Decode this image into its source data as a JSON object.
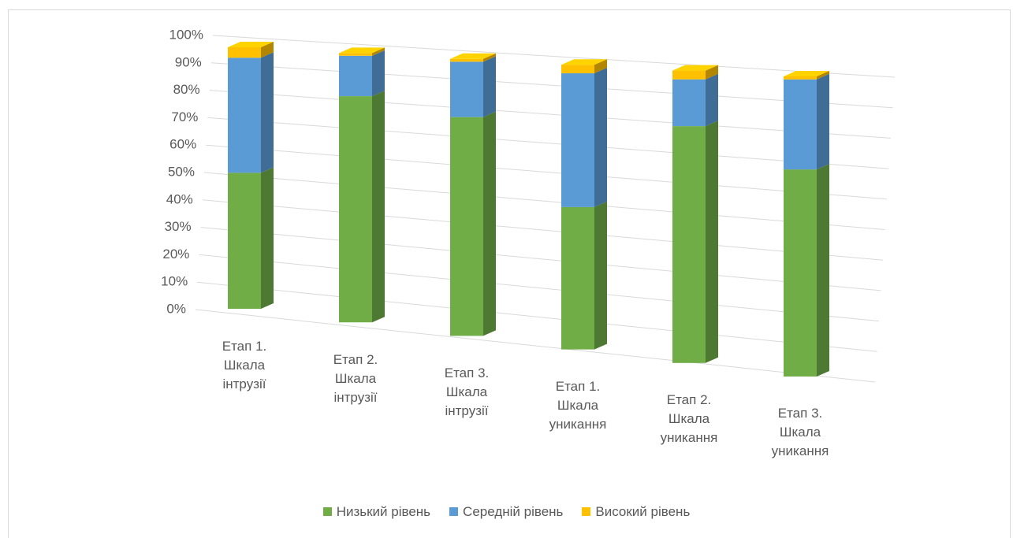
{
  "chart_data": {
    "type": "bar3d_stacked",
    "categories": [
      "Етап 1. Шкала інтрузії",
      "Етап 2. Шкала інтрузії",
      "Етап 3. Шкала інтрузії",
      "Етап 1. Шкала уникання",
      "Етап 2. Шкала уникання",
      "Етап 3. Шкала уникання"
    ],
    "series": [
      {
        "name": "Низький рівень",
        "color": "#70ad47",
        "values": [
          52,
          84,
          79,
          50,
          81,
          69
        ]
      },
      {
        "name": "Середній рівень",
        "color": "#5b9bd5",
        "values": [
          44,
          15,
          20,
          47,
          16,
          30
        ]
      },
      {
        "name": "Високий рівень",
        "color": "#ffc000",
        "values": [
          4,
          1,
          1,
          3,
          3,
          1
        ]
      }
    ],
    "ylim": [
      0,
      100
    ],
    "yticks": [
      {
        "value": 0,
        "label": "0%"
      },
      {
        "value": 10,
        "label": "10%"
      },
      {
        "value": 20,
        "label": "20%"
      },
      {
        "value": 30,
        "label": "30%"
      },
      {
        "value": 40,
        "label": "40%"
      },
      {
        "value": 50,
        "label": "50%"
      },
      {
        "value": 60,
        "label": "60%"
      },
      {
        "value": 70,
        "label": "70%"
      },
      {
        "value": 80,
        "label": "80%"
      },
      {
        "value": 90,
        "label": "90%"
      },
      {
        "value": 100,
        "label": "100%"
      }
    ],
    "grid": true,
    "legend": "bottom"
  }
}
